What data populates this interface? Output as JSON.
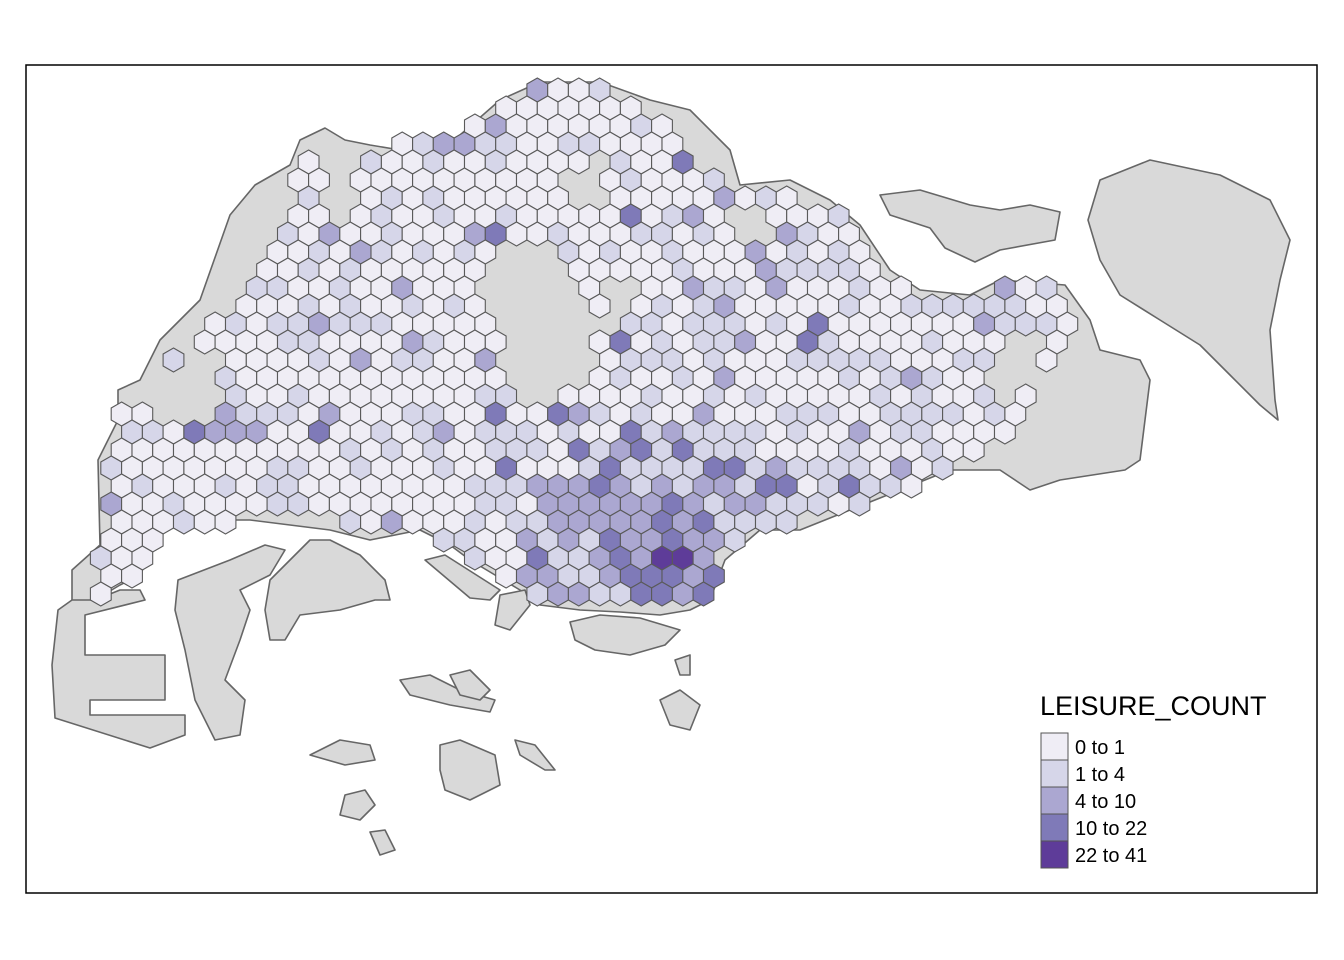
{
  "legend": {
    "title": "LEISURE_COUNT",
    "classes": [
      {
        "label": "0 to 1",
        "color": "#efedf5"
      },
      {
        "label": "1 to 4",
        "color": "#d6d6e9"
      },
      {
        "label": "4 to 10",
        "color": "#aba7d1"
      },
      {
        "label": "10 to 22",
        "color": "#7f7ab8"
      },
      {
        "label": "22 to 41",
        "color": "#5e3c99"
      }
    ]
  },
  "colors": {
    "land": "#d9d9d9",
    "land_stroke": "#666666",
    "frame": "#000000",
    "background": "#ffffff"
  }
}
